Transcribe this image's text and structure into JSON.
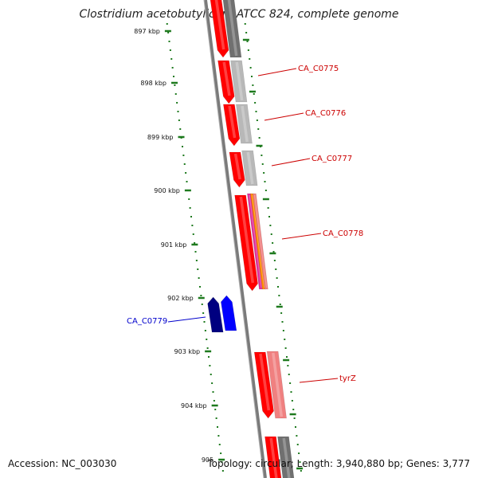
{
  "title": "Clostridium acetobutylicum ATCC 824, complete genome",
  "accession_text": "Accession: NC_003030",
  "stats_text": "Topology: circular; Length: 3,940,880 bp; Genes: 3,777",
  "colors": {
    "backbone": "#7a7a7a",
    "tick": "#1e7a1e",
    "red_gene": "#ff0000",
    "gray_gene": "#b8b8b8",
    "dark_gray_gene": "#707070",
    "blue_dark": "#000080",
    "blue_bright": "#0000ff",
    "pink_gene": "#f08080",
    "magenta": "#e0309a",
    "orange": "#ff8c00",
    "red_label": "#cc0000",
    "blue_label": "#0000cc"
  },
  "kbp_labels": [
    "897 kbp",
    "898 kbp",
    "899 kbp",
    "900 kbp",
    "901 kbp",
    "902 kbp",
    "903 kbp",
    "904 kbp",
    "905"
  ],
  "gene_labels": [
    {
      "text": "CA_C0775",
      "strand": "plus"
    },
    {
      "text": "CA_C0776",
      "strand": "plus"
    },
    {
      "text": "CA_C0777",
      "strand": "plus"
    },
    {
      "text": "CA_C0778",
      "strand": "plus"
    },
    {
      "text": "CA_C0779",
      "strand": "minus"
    },
    {
      "text": "tyrZ",
      "strand": "plus"
    }
  ]
}
